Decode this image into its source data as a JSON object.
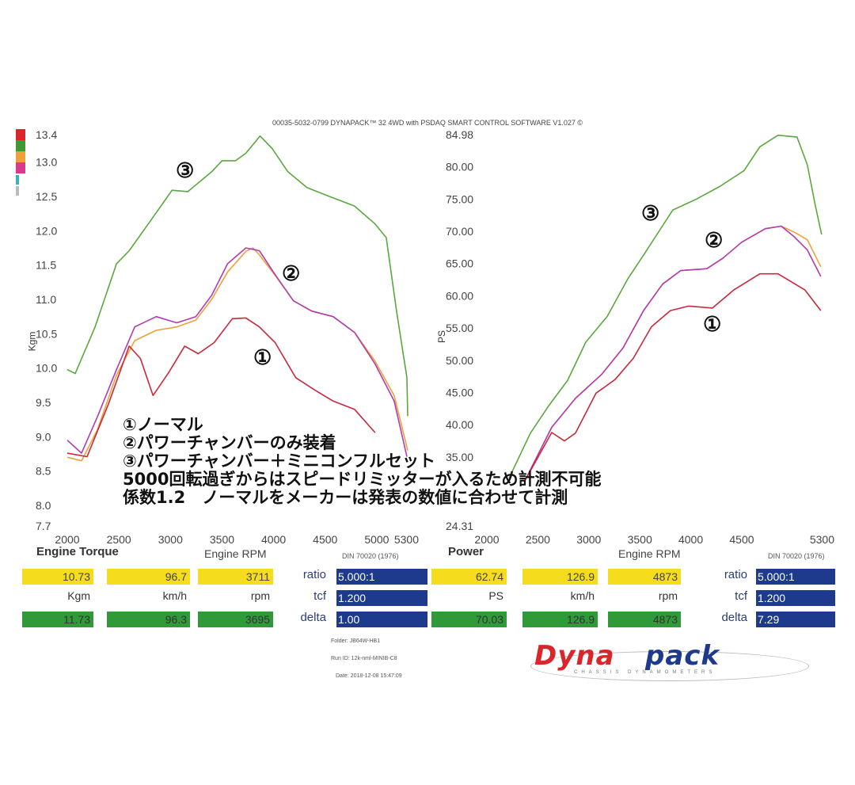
{
  "header": "00035-5032-0799 DYNAPACK™ 32 4WD with PSDAQ SMART CONTROL SOFTWARE V1.027 ©",
  "legend_colors": [
    "#d8262a",
    "#3c9a35",
    "#f0a03a",
    "#d93a8e",
    "#3ab0c0",
    "#b8bcbc"
  ],
  "notes": [
    "①ノーマル",
    "②パワーチャンバーのみ装着",
    "③パワーチャンバー＋ミニコンフルセット",
    "5000回転過ぎからはスピードリミッターが入るため計測不可能",
    "係数1.2　ノーマルをメーカーは発表の数値に合わせて計測"
  ],
  "chart_data": [
    {
      "type": "line",
      "title": "Engine Torque",
      "xlabel": "Engine RPM",
      "ylabel": "Kgm",
      "standard": "DIN 70020 (1976)",
      "xlim": [
        2000,
        5300
      ],
      "ylim": [
        7.7,
        13.4
      ],
      "xticks": [
        "2000",
        "2500",
        "3000",
        "3500",
        "4000",
        "4500",
        "5000",
        "5300"
      ],
      "yticks": [
        "13.4",
        "13.0",
        "12.5",
        "12.0",
        "11.5",
        "11.0",
        "10.5",
        "10.0",
        "9.5",
        "9.0",
        "8.5",
        "8.0",
        "7.7"
      ],
      "grid": false,
      "annotations": [
        {
          "text": "③",
          "series": "3"
        },
        {
          "text": "②",
          "series": "2"
        },
        {
          "text": "①",
          "series": "1"
        }
      ],
      "series": [
        {
          "id": "3",
          "color": "#5aa83c",
          "x": [
            2000,
            2077,
            2269,
            2477,
            2600,
            2785,
            3015,
            3169,
            3400,
            3500,
            3631,
            3731,
            3869,
            3985,
            4138,
            4323,
            4523,
            4784,
            4984,
            5092,
            5192,
            5292,
            5300
          ],
          "y": [
            9.98,
            9.92,
            10.6,
            11.52,
            11.71,
            12.1,
            12.59,
            12.57,
            12.86,
            13.02,
            13.02,
            13.13,
            13.38,
            13.2,
            12.86,
            12.63,
            12.51,
            12.36,
            12.1,
            11.9,
            10.83,
            9.86,
            9.3
          ]
        },
        {
          "id": "2",
          "color": "#f0a03a",
          "x": [
            2000,
            2138,
            2292,
            2477,
            2654,
            2862,
            3061,
            3246,
            3400,
            3554,
            3731,
            3800,
            3862,
            4015,
            4192,
            4369,
            4577,
            4784,
            4984,
            5169,
            5300
          ],
          "y": [
            8.7,
            8.65,
            9.1,
            9.9,
            10.4,
            10.55,
            10.6,
            10.7,
            11.0,
            11.4,
            11.7,
            11.75,
            11.65,
            11.35,
            10.98,
            10.83,
            10.75,
            10.52,
            10.1,
            9.6,
            8.8
          ]
        },
        {
          "id": "2b",
          "color": "#b03cb0",
          "x": [
            2000,
            2138,
            2292,
            2477,
            2654,
            2862,
            3061,
            3246,
            3400,
            3554,
            3731,
            3862,
            4015,
            4192,
            4369,
            4577,
            4784,
            4984,
            5169,
            5292
          ],
          "y": [
            8.95,
            8.76,
            9.29,
            9.98,
            10.6,
            10.75,
            10.66,
            10.75,
            11.06,
            11.52,
            11.75,
            11.71,
            11.36,
            10.98,
            10.83,
            10.75,
            10.52,
            10.06,
            9.52,
            8.71
          ]
        },
        {
          "id": "1",
          "color": "#c8283a",
          "x": [
            2000,
            2192,
            2400,
            2600,
            2708,
            2831,
            2985,
            3138,
            3269,
            3423,
            3600,
            3731,
            3862,
            4015,
            4215,
            4400,
            4577,
            4784,
            4984
          ],
          "y": [
            8.76,
            8.71,
            9.48,
            10.32,
            10.14,
            9.6,
            9.94,
            10.32,
            10.21,
            10.37,
            10.72,
            10.73,
            10.6,
            10.37,
            9.86,
            9.68,
            9.52,
            9.4,
            9.06
          ]
        }
      ],
      "readout": {
        "yellow": [
          "10.73",
          "96.7",
          "3711"
        ],
        "units": [
          "Kgm",
          "km/h",
          "rpm"
        ],
        "green": [
          "11.73",
          "96.3",
          "3695"
        ],
        "ratio": "5.000:1",
        "tcf": "1.200",
        "delta": "1.00"
      }
    },
    {
      "type": "line",
      "title": "Power",
      "xlabel": "Engine RPM",
      "ylabel": "PS",
      "standard": "DIN 70020 (1976)",
      "xlim": [
        2000,
        5300
      ],
      "ylim": [
        24.31,
        84.98
      ],
      "xticks": [
        "2000",
        "2500",
        "3000",
        "3500",
        "4000",
        "4500",
        "5300"
      ],
      "yticks": [
        "84.98",
        "80.00",
        "75.00",
        "70.00",
        "65.00",
        "60.00",
        "55.00",
        "50.00",
        "45.00",
        "40.00",
        "35.00",
        "24.31"
      ],
      "grid": false,
      "annotations": [
        {
          "text": "③",
          "series": "3"
        },
        {
          "text": "②",
          "series": "2"
        },
        {
          "text": "①",
          "series": "1"
        }
      ],
      "series": [
        {
          "id": "3",
          "color": "#5aa83c",
          "x": [
            2217,
            2427,
            2605,
            2792,
            2970,
            3180,
            3381,
            3537,
            3668,
            3824,
            4056,
            4289,
            4522,
            4677,
            4856,
            5042,
            5143,
            5220,
            5283
          ],
          "y": [
            31.7,
            38.7,
            42.9,
            46.9,
            52.8,
            56.8,
            62.6,
            66.3,
            69.5,
            73.3,
            75.0,
            77.0,
            79.4,
            83.1,
            84.9,
            84.6,
            80.3,
            74.1,
            69.5
          ]
        },
        {
          "id": "2",
          "color": "#f0a03a",
          "x": [
            2372,
            2636,
            2869,
            3125,
            3335,
            3537,
            3723,
            3901,
            4157,
            4312,
            4499,
            4731,
            4887,
            5011,
            5143,
            5275
          ],
          "y": [
            31.3,
            39.6,
            44.1,
            47.8,
            51.9,
            57.7,
            61.8,
            63.9,
            64.2,
            65.8,
            68.3,
            70.4,
            70.8,
            69.9,
            68.7,
            64.5
          ]
        },
        {
          "id": "2b",
          "color": "#b03cb0",
          "x": [
            2372,
            2636,
            2869,
            3125,
            3335,
            3537,
            3723,
            3901,
            4157,
            4312,
            4499,
            4731,
            4887,
            5011,
            5143,
            5275
          ],
          "y": [
            31.3,
            39.6,
            44.1,
            47.8,
            51.9,
            57.7,
            61.8,
            63.9,
            64.2,
            65.8,
            68.3,
            70.4,
            70.8,
            69.2,
            67.1,
            63.0
          ]
        },
        {
          "id": "1",
          "color": "#c8283a",
          "x": [
            2372,
            2636,
            2760,
            2869,
            3071,
            3257,
            3436,
            3614,
            3800,
            3979,
            4212,
            4421,
            4677,
            4856,
            5120,
            5275
          ],
          "y": [
            31.3,
            38.8,
            37.5,
            38.7,
            44.9,
            47.0,
            50.3,
            55.2,
            57.7,
            58.4,
            58.1,
            60.9,
            63.4,
            63.4,
            60.9,
            57.7
          ]
        }
      ],
      "readout": {
        "yellow": [
          "62.74",
          "126.9",
          "4873"
        ],
        "units": [
          "PS",
          "km/h",
          "rpm"
        ],
        "green": [
          "70.03",
          "126.9",
          "4873"
        ],
        "ratio": "5.000:1",
        "tcf": "1.200",
        "delta": "7.29"
      }
    }
  ],
  "readout_labels": {
    "ratio": "ratio",
    "tcf": "tcf",
    "delta": "delta"
  },
  "info": {
    "folder": "Folder:  JB64W-HB1",
    "run": "Run ID:  12k-nml-MINIB-C8",
    "date": "Date:  2018-12-08 15:47:09"
  },
  "logo": {
    "text1": "Dyna",
    "text2": "pack",
    "tag": "CHASSIS DYNAMOMETERS"
  }
}
